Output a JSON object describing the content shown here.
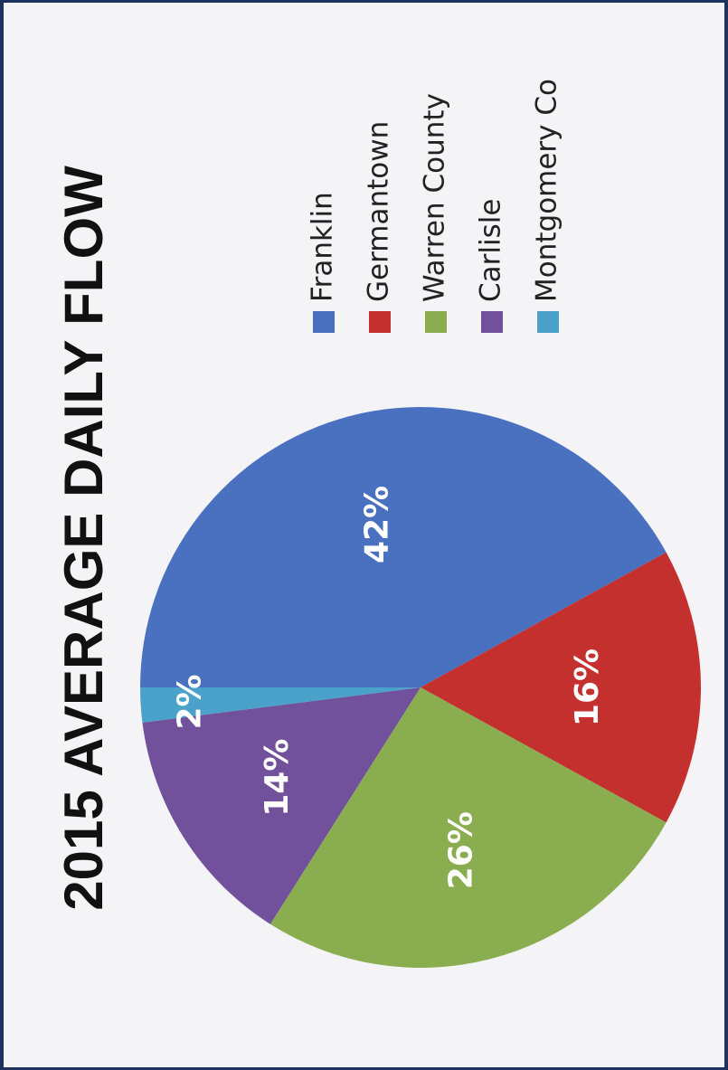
{
  "chart_data": {
    "type": "pie",
    "title": "2015 AVERAGE DAILY FLOW",
    "categories": [
      "Franklin",
      "Germantown",
      "Warren County",
      "Carlisle",
      "Montgomery Co"
    ],
    "values": [
      42,
      16,
      26,
      14,
      2
    ],
    "value_labels": [
      "42%",
      "16%",
      "26%",
      "14%",
      "2%"
    ],
    "colors": [
      "#4a70c0",
      "#c4302e",
      "#8aad50",
      "#71519b",
      "#4aa2ca"
    ],
    "legend": "right"
  }
}
